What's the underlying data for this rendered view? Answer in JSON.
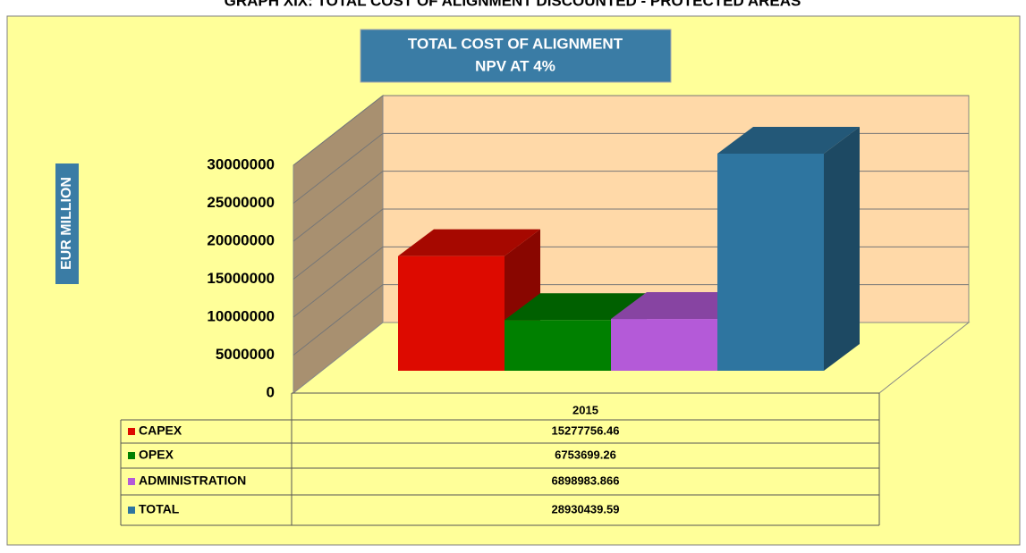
{
  "chart_data": {
    "type": "bar3d",
    "header": "GRAPH XIX: TOTAL COST OF ALIGNMENT DISCOUNTED - PROTECTED AREAS",
    "title": [
      "TOTAL COST OF ALIGNMENT",
      "NPV AT 4%"
    ],
    "y_label": "EUR MILLION",
    "categories": [
      "2015"
    ],
    "series": [
      {
        "name": "CAPEX",
        "color": "#dd0a00",
        "values": [
          15277756.46
        ]
      },
      {
        "name": "OPEX",
        "color": "#008000",
        "values": [
          6753699.26
        ]
      },
      {
        "name": "ADMINISTRATION",
        "color": "#b45ad8",
        "values": [
          6898983.866
        ]
      },
      {
        "name": "TOTAL",
        "color": "#2e75a0",
        "values": [
          28930439.59
        ]
      }
    ],
    "ylim": [
      0,
      30000000
    ],
    "yticks": [
      0,
      5000000,
      10000000,
      15000000,
      20000000,
      25000000,
      30000000
    ],
    "grid": true
  }
}
